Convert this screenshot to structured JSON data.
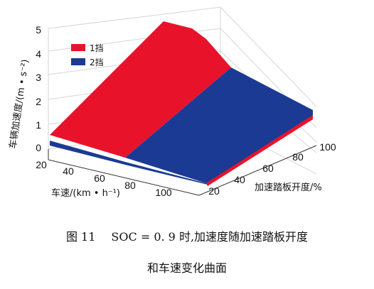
{
  "chart_data": {
    "type": "surface-3d",
    "title": "",
    "xlabel": "车速/(km • h⁻¹)",
    "ylabel": "加速踏板开度/%",
    "zlabel": "车辆加速度/(m • s⁻²)",
    "x_ticks": [
      "20",
      "40",
      "60",
      "80",
      "100"
    ],
    "y_ticks": [
      "20",
      "40",
      "60",
      "80",
      "100"
    ],
    "z_ticks": [
      "0",
      "1",
      "2",
      "3",
      "4",
      "5"
    ],
    "xlim": [
      20,
      100
    ],
    "ylim": [
      20,
      100
    ],
    "zlim": [
      0,
      5
    ],
    "legend_position": "top-left",
    "series": [
      {
        "name": "1挡",
        "color": "#e8132b",
        "x": [
          20,
          20,
          40,
          40,
          60,
          60,
          75
        ],
        "y": [
          20,
          100,
          20,
          100,
          20,
          100,
          100
        ],
        "z": [
          0.6,
          5.0,
          0.35,
          4.8,
          0.2,
          4.4,
          4.1
        ]
      },
      {
        "name": "2挡",
        "color": "#1b3a93",
        "x": [
          20,
          60,
          60,
          80,
          100,
          100
        ],
        "y": [
          20,
          20,
          100,
          20,
          20,
          100
        ],
        "z": [
          0.3,
          0.1,
          3.9,
          0.1,
          0.1,
          2.0
        ]
      }
    ]
  },
  "caption": {
    "figure_number": "图 11",
    "line1": "SOC = 0. 9 时,加速度随加速踏板开度",
    "line2": "和车速变化曲面"
  }
}
